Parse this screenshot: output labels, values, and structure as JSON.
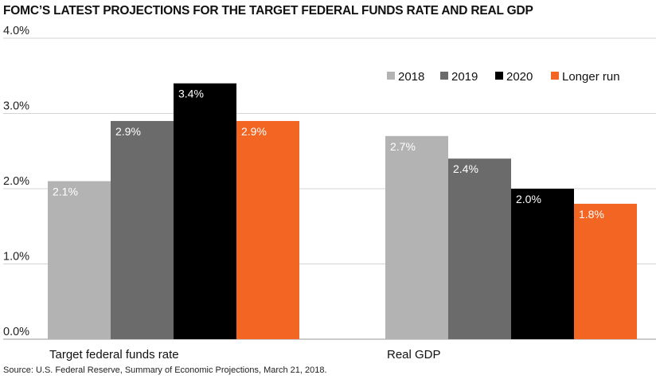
{
  "chart_data": {
    "type": "bar",
    "title": "FOMC’S LATEST PROJECTIONS FOR THE TARGET FEDERAL FUNDS RATE AND REAL GDP",
    "categories": [
      "Target federal funds rate",
      "Real GDP"
    ],
    "series": [
      {
        "name": "2018",
        "values": [
          2.1,
          2.7
        ],
        "labels": [
          "2.1%",
          "2.7%"
        ],
        "color": "#b3b3b3"
      },
      {
        "name": "2019",
        "values": [
          2.9,
          2.4
        ],
        "labels": [
          "2.9%",
          "2.4%"
        ],
        "color": "#6b6b6b"
      },
      {
        "name": "2020",
        "values": [
          3.4,
          2.0
        ],
        "labels": [
          "3.4%",
          "2.0%"
        ],
        "color": "#000000"
      },
      {
        "name": "Longer run",
        "values": [
          2.9,
          1.8
        ],
        "labels": [
          "2.9%",
          "1.8%"
        ],
        "color": "#f26522"
      }
    ],
    "yticks": [
      "0.0%",
      "1.0%",
      "2.0%",
      "3.0%",
      "4.0%"
    ],
    "ylim": [
      0,
      4.0
    ],
    "grid": true,
    "legend": "top-right",
    "source": "Source: U.S. Federal Reserve, Summary of Economic Projections, March 21, 2018."
  }
}
